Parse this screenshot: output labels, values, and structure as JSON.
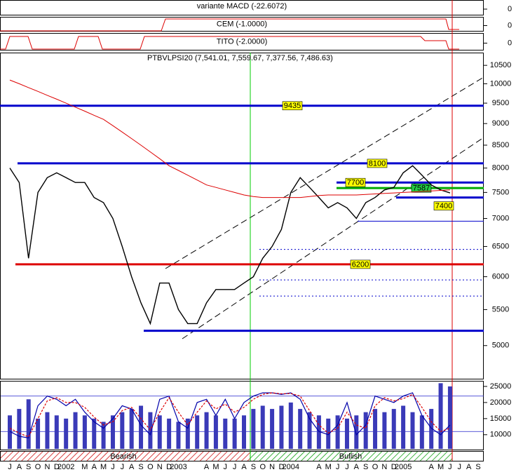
{
  "chart_data": [
    {
      "type": "line",
      "title": "PTBVLPSI20 (7,541.01, 7,559.67, 7,377.56, 7,486.63)",
      "categories": [
        "J",
        "A",
        "S",
        "O",
        "N",
        "D",
        "2002",
        null,
        "M",
        "A",
        "M",
        "J",
        "J",
        "A",
        "S",
        "O",
        "N",
        "D",
        "2003",
        null,
        null,
        "A",
        "M",
        "J",
        "J",
        "A",
        "S",
        "O",
        "N",
        "D",
        "2004",
        null,
        null,
        "A",
        "M",
        "J",
        "J",
        "A",
        "S",
        "O",
        "N",
        "D",
        "2005",
        null,
        null,
        "A",
        "M",
        "J",
        "J",
        "A",
        "S"
      ],
      "series": [
        {
          "color": "#000000",
          "values": [
            8000,
            7700,
            6300,
            7500,
            7800,
            7900,
            7800,
            7700,
            7700,
            7400,
            7300,
            7000,
            6500,
            6000,
            5600,
            5300,
            5900,
            5900,
            5500,
            5300,
            5300,
            5600,
            5800,
            5800,
            5800,
            5900,
            6000,
            6300,
            6500,
            6800,
            7500,
            7800,
            7600,
            7400,
            7200,
            7300,
            7200,
            7000,
            7300,
            7400,
            7550,
            7600,
            7900,
            8050,
            7850,
            7650,
            7550,
            7490,
            null,
            null,
            null
          ]
        },
        {
          "color": "#dd0000",
          "values": [
            10100,
            10000,
            9900,
            9800,
            9700,
            9600,
            9500,
            9400,
            9300,
            9200,
            9100,
            8950,
            8800,
            8650,
            8500,
            8350,
            8200,
            8050,
            7950,
            7850,
            7750,
            7650,
            7600,
            7550,
            7500,
            7450,
            7420,
            7400,
            7400,
            7400,
            7400,
            7400,
            7420,
            7440,
            7450,
            7450,
            7450,
            7450,
            7460,
            7470,
            7480,
            7490,
            7500,
            7510,
            7520,
            7530,
            7540,
            7550,
            null,
            null,
            null
          ]
        }
      ],
      "levels": [
        {
          "value": 9435,
          "color": "#0000cc",
          "style": "bold",
          "boxed": true,
          "box_color": "#ffff00"
        },
        {
          "value": 8100,
          "color": "#0000cc",
          "style": "bold",
          "boxed": true,
          "box_color": "#ffff00"
        },
        {
          "value": 7700,
          "color": "#0000cc",
          "style": "bold",
          "boxed": true,
          "box_color": "#ffff00"
        },
        {
          "value": 7587,
          "color": "#00aa00",
          "style": "bold",
          "boxed": true,
          "box_color": "#22cc44"
        },
        {
          "value": 7400,
          "color": "#0000cc",
          "style": "bold",
          "boxed": true,
          "box_color": "#ffff00"
        },
        {
          "value": 6200,
          "color": "#dd0000",
          "style": "bold",
          "boxed": true,
          "box_color": "#ffff00"
        },
        {
          "value": 5200,
          "color": "#0000cc",
          "style": "bold",
          "boxed": false
        },
        {
          "value": 6450,
          "color": "#0000cc",
          "style": "dotted",
          "boxed": false
        },
        {
          "value": 5950,
          "color": "#0000cc",
          "style": "dotted",
          "boxed": false
        },
        {
          "value": 5700,
          "color": "#0000cc",
          "style": "dotted",
          "boxed": false
        },
        {
          "value": 6950,
          "color": "#0000cc",
          "style": "thin",
          "boxed": false
        }
      ],
      "log_scale": true,
      "ylim": [
        4580,
        10800
      ],
      "yticks": [
        5000,
        5500,
        6000,
        6500,
        7000,
        7500,
        8000,
        8500,
        9000,
        9500,
        10000,
        10500
      ],
      "regimes": [
        {
          "label": "Bearish",
          "color": "#cc0000"
        },
        {
          "label": "Bullish",
          "color": "#009900"
        }
      ]
    },
    {
      "type": "bar",
      "series": [
        {
          "color": "#3a3ab8",
          "values": [
            16000,
            18000,
            21000,
            15000,
            17000,
            16000,
            15000,
            17000,
            16000,
            15000,
            14000,
            16000,
            17000,
            18000,
            19000,
            17000,
            16000,
            15000,
            14000,
            15000,
            16000,
            17000,
            16000,
            15000,
            15000,
            16000,
            18000,
            19000,
            18000,
            19000,
            20000,
            18000,
            17000,
            16000,
            15000,
            16000,
            15000,
            16000,
            17000,
            18000,
            17000,
            18000,
            19000,
            17000,
            16000,
            18000,
            26000,
            25000,
            null,
            null,
            null
          ]
        },
        {
          "color": "#0000aa",
          "values": [
            11000,
            9500,
            9000,
            19000,
            22000,
            21000,
            19000,
            21000,
            17000,
            14000,
            12000,
            15000,
            19000,
            18000,
            13000,
            10000,
            21000,
            22000,
            14000,
            12000,
            20000,
            21000,
            16000,
            21000,
            15000,
            20000,
            22000,
            23000,
            23000,
            22500,
            23000,
            21000,
            15000,
            11000,
            10000,
            13000,
            20000,
            10000,
            13000,
            22000,
            21000,
            20000,
            22000,
            23000,
            16000,
            12000,
            10000,
            13000,
            null,
            null,
            null
          ]
        },
        {
          "color": "#dd0000",
          "values": [
            12000,
            10500,
            9300,
            15000,
            20500,
            21500,
            20000,
            20000,
            18500,
            15500,
            13000,
            14000,
            17500,
            18500,
            15000,
            11500,
            17000,
            21500,
            17000,
            13000,
            17000,
            20500,
            18000,
            19500,
            17000,
            18500,
            21000,
            22500,
            23000,
            22700,
            22800,
            22000,
            17500,
            13000,
            10500,
            12000,
            17000,
            13000,
            12000,
            19000,
            21500,
            20500,
            21200,
            22500,
            18500,
            14000,
            11000,
            12000,
            null,
            null,
            null
          ]
        }
      ],
      "ref_lines": [
        22000,
        11000
      ],
      "ylim": [
        5600,
        26300
      ],
      "yticks": [
        10000,
        15000,
        20000,
        25000
      ]
    },
    {
      "type": "indicator",
      "title": "variante MACD (-22.6072)",
      "yticks": [
        0
      ]
    },
    {
      "type": "indicator",
      "title": "CEM (-1.0000)",
      "yticks": [
        0
      ]
    },
    {
      "type": "indicator",
      "title": "TITO (-2.0000)",
      "yticks": [
        0
      ]
    }
  ]
}
